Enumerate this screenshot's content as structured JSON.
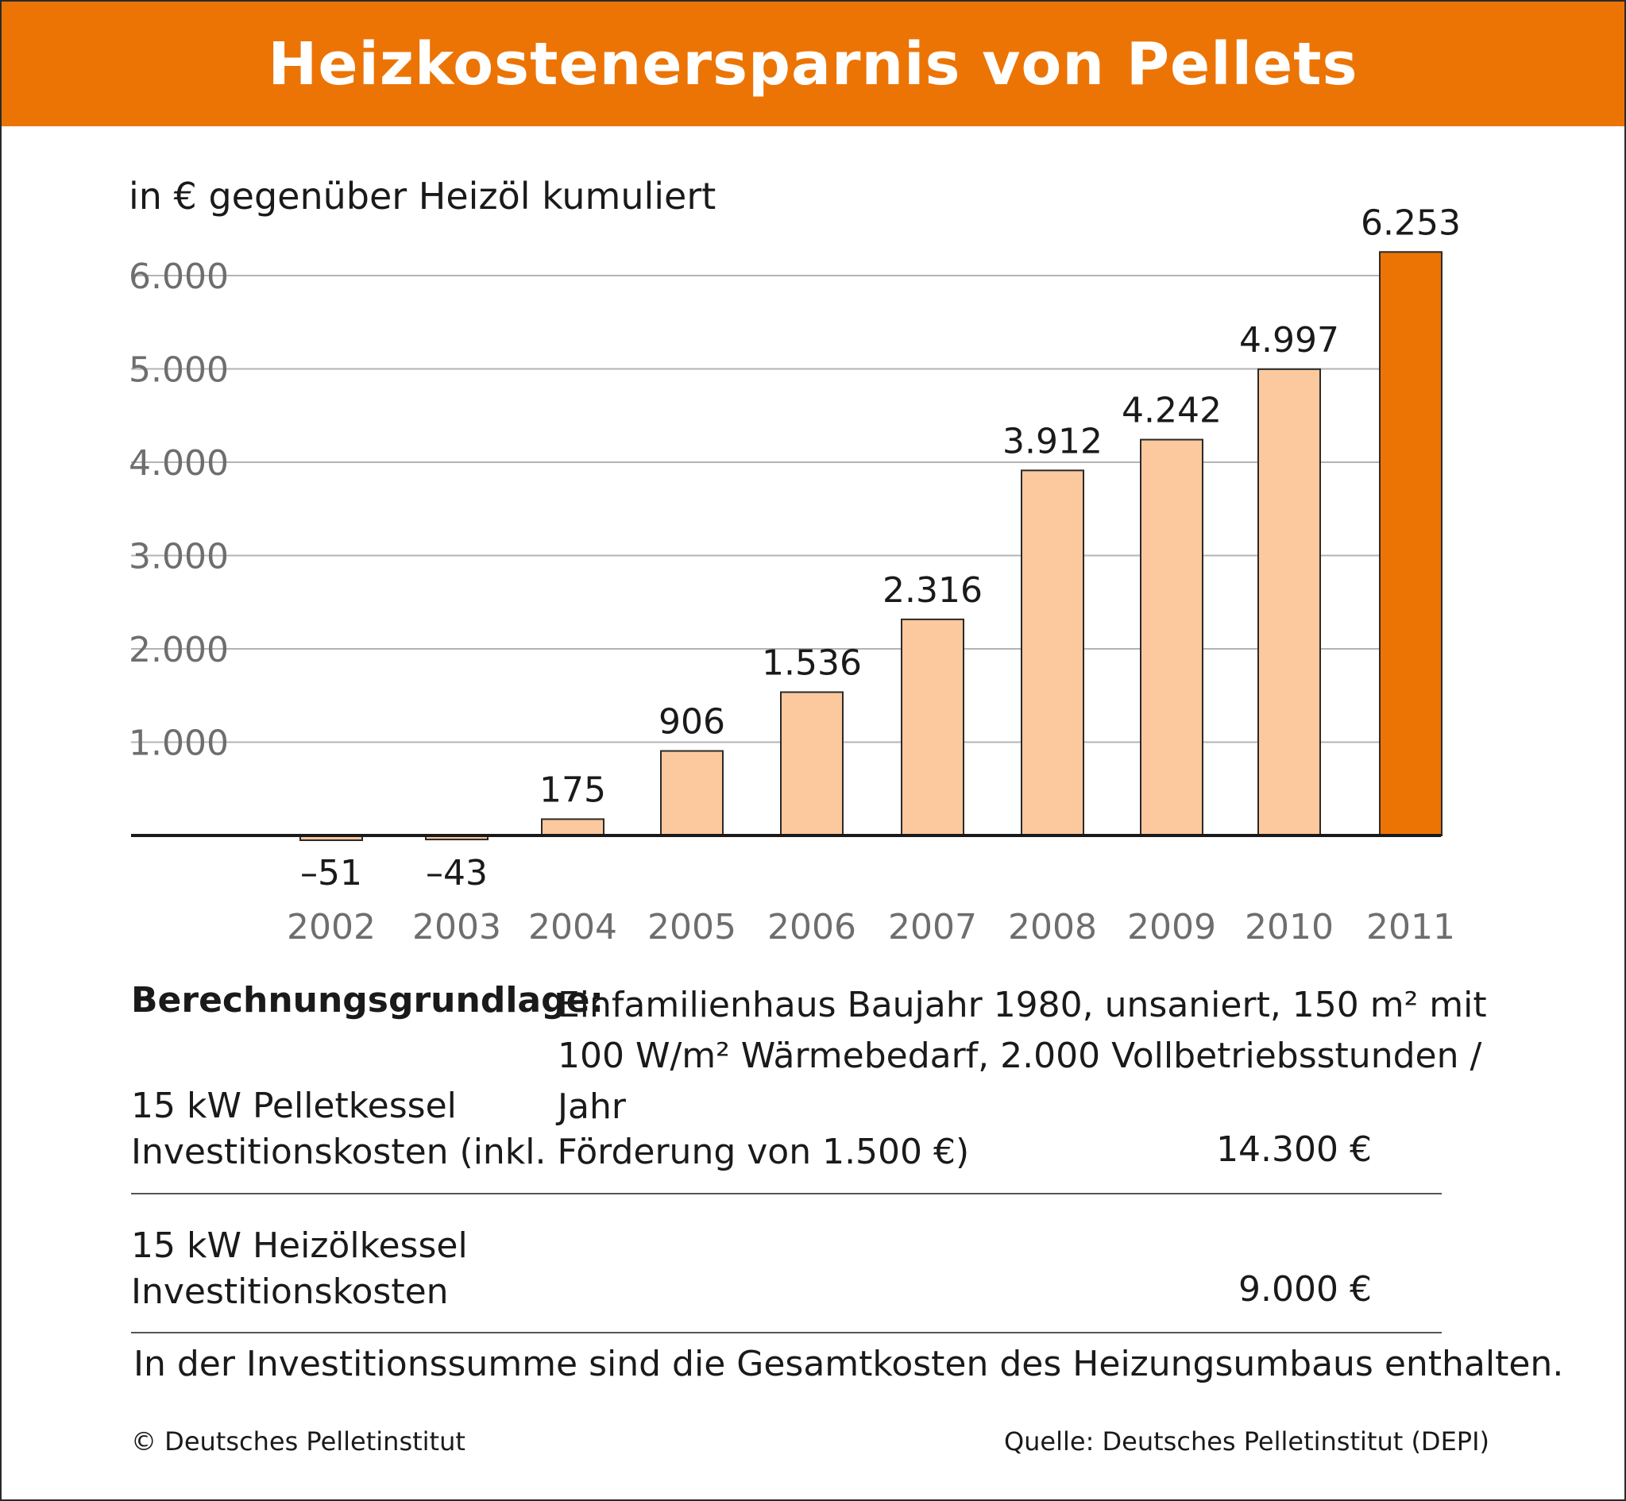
{
  "header": {
    "title": "Heizkostenersparnis von Pellets"
  },
  "chart_data": {
    "type": "bar",
    "title": "Heizkostenersparnis von Pellets",
    "subtitle": "in € gegenüber Heizöl kumuliert",
    "xlabel": "",
    "ylabel": "",
    "categories": [
      "2002",
      "2003",
      "2004",
      "2005",
      "2006",
      "2007",
      "2008",
      "2009",
      "2010",
      "2011"
    ],
    "values": [
      -51,
      -43,
      175,
      906,
      1536,
      2316,
      3912,
      4242,
      4997,
      6253
    ],
    "value_labels": [
      "–51",
      "–43",
      "175",
      "906",
      "1.536",
      "2.316",
      "3.912",
      "4.242",
      "4.997",
      "6.253"
    ],
    "yticks": [
      1000,
      2000,
      3000,
      4000,
      5000,
      6000
    ],
    "ytick_labels": [
      "1.000",
      "2.000",
      "3.000",
      "4.000",
      "5.000",
      "6.000"
    ],
    "ylim": [
      -150,
      6600
    ],
    "grid": true,
    "legend": "none",
    "colors": {
      "bar": "#fcc89e",
      "bar_highlight": "#ec7405",
      "bar_stroke": "#2a2a2a",
      "grid": "#b3b3b3"
    },
    "highlight_category": "2011"
  },
  "basis": {
    "label": "Berechnungsgrundlage:",
    "lines": [
      "Einfamilienhaus Baujahr 1980, unsaniert, 150 m² mit",
      "100 W/m² Wärmebedarf, 2.000 Vollbetriebsstunden / Jahr"
    ]
  },
  "costs": [
    {
      "name": "15 kW Pelletkessel",
      "description": "Investitionskosten (inkl. Förderung von 1.500 €)",
      "value": "14.300 €"
    },
    {
      "name": "15 kW Heizölkessel",
      "description": "Investitionskosten",
      "value": "9.000 €"
    }
  ],
  "note": "In der Investitionssumme sind die Gesamtkosten des Heizungsumbaus enthalten.",
  "footer": {
    "copyright": "© Deutsches Pelletinstitut",
    "source": "Quelle: Deutsches Pelletinstitut (DEPI)"
  }
}
